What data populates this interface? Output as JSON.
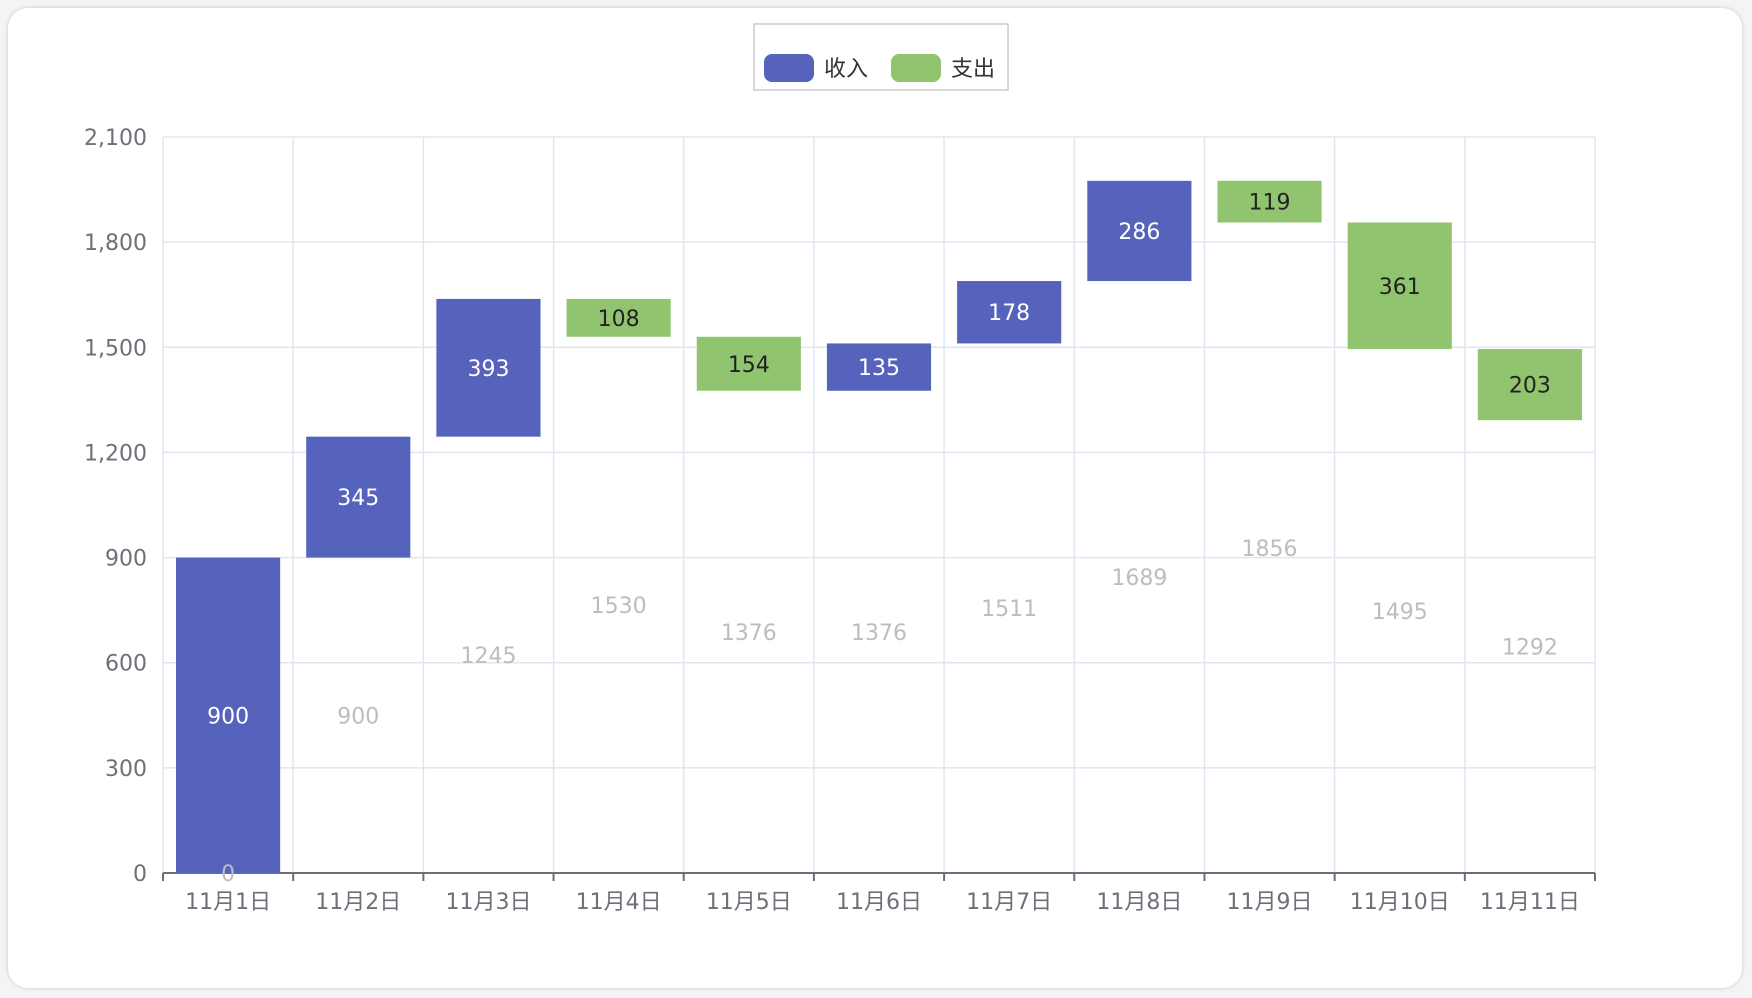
{
  "chart_data": {
    "type": "bar",
    "subtype": "waterfall-stacked",
    "categories": [
      "11月1日",
      "11月2日",
      "11月3日",
      "11月4日",
      "11月5日",
      "11月6日",
      "11月7日",
      "11月8日",
      "11月9日",
      "11月10日",
      "11月11日"
    ],
    "ylim": [
      0,
      2100
    ],
    "yticks": [
      0,
      300,
      600,
      900,
      1200,
      1500,
      1800,
      2100
    ],
    "ytick_labels": [
      "0",
      "300",
      "600",
      "900",
      "1,200",
      "1,500",
      "1,800",
      "2,100"
    ],
    "grid": true,
    "legend": {
      "placement": "top-center"
    },
    "series": [
      {
        "name": "",
        "role": "base",
        "values": [
          0,
          900,
          1245,
          1530,
          1376,
          1376,
          1511,
          1689,
          1856,
          1495,
          1292
        ]
      },
      {
        "name": "收入",
        "role": "income",
        "color": "#5563bd",
        "values": [
          900,
          345,
          393,
          null,
          null,
          135,
          178,
          286,
          null,
          null,
          null
        ]
      },
      {
        "name": "支出",
        "role": "expense",
        "color": "#91c46f",
        "values": [
          null,
          null,
          null,
          108,
          154,
          null,
          null,
          null,
          119,
          361,
          203
        ]
      }
    ]
  }
}
